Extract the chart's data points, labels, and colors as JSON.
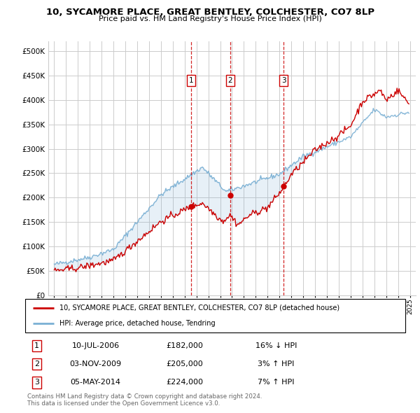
{
  "title": "10, SYCAMORE PLACE, GREAT BENTLEY, COLCHESTER, CO7 8LP",
  "subtitle": "Price paid vs. HM Land Registry's House Price Index (HPI)",
  "legend_line1": "10, SYCAMORE PLACE, GREAT BENTLEY, COLCHESTER, CO7 8LP (detached house)",
  "legend_line2": "HPI: Average price, detached house, Tendring",
  "transactions": [
    {
      "label": "1",
      "date": "10-JUL-2006",
      "price": "£182,000",
      "hpi": "16% ↓ HPI",
      "x_year": 2006.53,
      "y_val": 182000
    },
    {
      "label": "2",
      "date": "03-NOV-2009",
      "price": "£205,000",
      "hpi": "3% ↑ HPI",
      "x_year": 2009.84,
      "y_val": 205000
    },
    {
      "label": "3",
      "date": "05-MAY-2014",
      "price": "£224,000",
      "hpi": "7% ↑ HPI",
      "x_year": 2014.34,
      "y_val": 224000
    }
  ],
  "footer1": "Contains HM Land Registry data © Crown copyright and database right 2024.",
  "footer2": "This data is licensed under the Open Government Licence v3.0.",
  "red_color": "#cc0000",
  "blue_color": "#7ab0d4",
  "vline_color": "#cc0000",
  "grid_color": "#cccccc",
  "background_color": "#ffffff",
  "ylim": [
    0,
    520000
  ],
  "yticks": [
    0,
    50000,
    100000,
    150000,
    200000,
    250000,
    300000,
    350000,
    400000,
    450000,
    500000
  ],
  "xlim_start": 1994.5,
  "xlim_end": 2025.5
}
